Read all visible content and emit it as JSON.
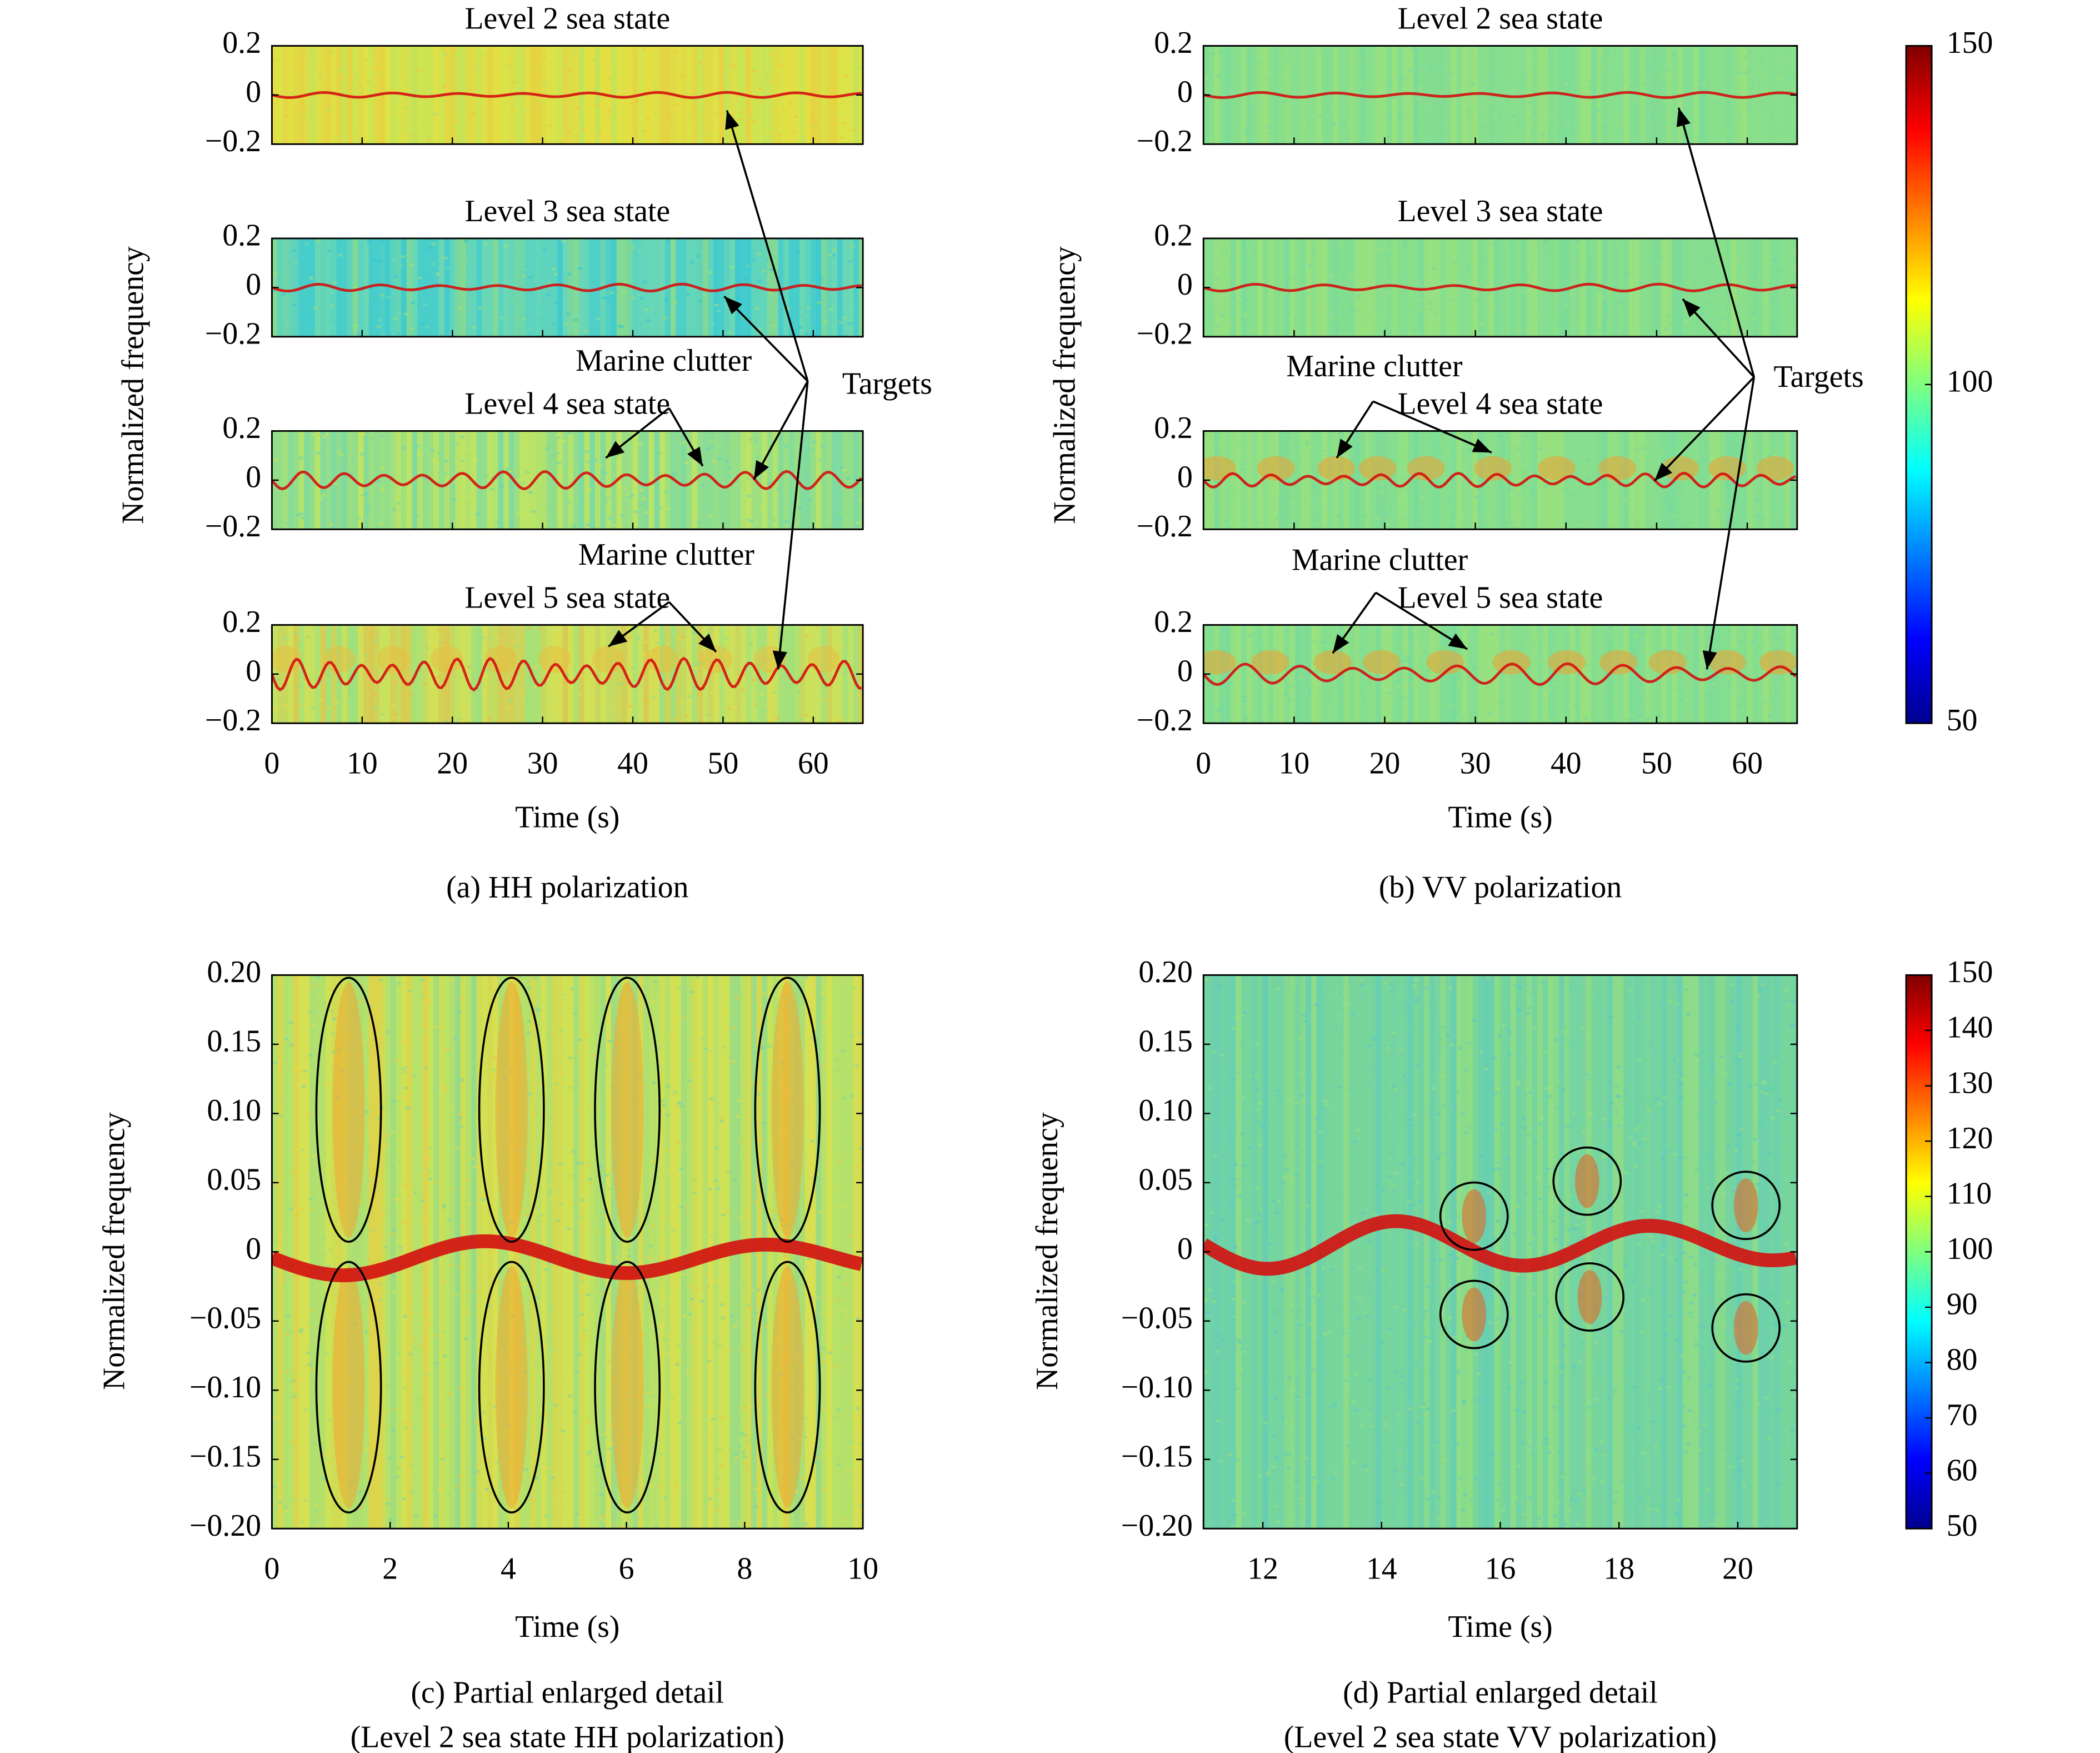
{
  "chart_data": [
    {
      "type": "heatmap-stack",
      "caption": "(a) HH polarization",
      "ylabel": "Normalized frequency",
      "xlabel": "Time (s)",
      "xlim": [
        0,
        65.5
      ],
      "xticks": [
        0,
        10,
        20,
        30,
        40,
        50,
        60
      ],
      "panels": [
        {
          "title": "Level 2 sea state",
          "ylim": [
            -0.2,
            0.2
          ],
          "yticks": [
            0.2,
            0,
            {
              "value": -0.2,
              "label": "−0.2"
            }
          ]
        },
        {
          "title": "Level 3 sea state",
          "ylim": [
            -0.2,
            0.2
          ],
          "yticks": [
            0.2,
            0,
            {
              "value": -0.2,
              "label": "−0.2"
            }
          ]
        },
        {
          "title": "Level 4 sea state",
          "ylim": [
            -0.2,
            0.2
          ],
          "yticks": [
            0.2,
            0,
            {
              "value": -0.2,
              "label": "−0.2"
            }
          ]
        },
        {
          "title": "Level 5 sea state",
          "ylim": [
            -0.2,
            0.2
          ],
          "yticks": [
            0.2,
            0,
            {
              "value": -0.2,
              "label": "−0.2"
            }
          ]
        }
      ],
      "annotations": [
        "Marine clutter",
        "Marine clutter",
        "Targets"
      ]
    },
    {
      "type": "heatmap-stack",
      "caption": "(b) VV polarization",
      "ylabel": "Normalized frequency",
      "xlabel": "Time (s)",
      "xlim": [
        0,
        65.5
      ],
      "xticks": [
        0,
        10,
        20,
        30,
        40,
        50,
        60
      ],
      "panels": [
        {
          "title": "Level 2 sea state",
          "ylim": [
            -0.2,
            0.2
          ],
          "yticks": [
            0.2,
            0,
            {
              "value": -0.2,
              "label": "−0.2"
            }
          ]
        },
        {
          "title": "Level 3 sea state",
          "ylim": [
            -0.2,
            0.2
          ],
          "yticks": [
            0.2,
            0,
            {
              "value": -0.2,
              "label": "−0.2"
            }
          ]
        },
        {
          "title": "Level 4 sea state",
          "ylim": [
            -0.2,
            0.2
          ],
          "yticks": [
            0.2,
            0,
            {
              "value": -0.2,
              "label": "−0.2"
            }
          ]
        },
        {
          "title": "Level 5 sea state",
          "ylim": [
            -0.2,
            0.2
          ],
          "yticks": [
            0.2,
            0,
            {
              "value": -0.2,
              "label": "−0.2"
            }
          ]
        }
      ],
      "annotations": [
        "Marine clutter",
        "Marine clutter",
        "Targets"
      ]
    },
    {
      "type": "heatmap",
      "caption": [
        "(c) Partial enlarged detail",
        "(Level 2 sea state HH polarization)"
      ],
      "ylabel": "Normalized frequency",
      "xlabel": "Time (s)",
      "xlim": [
        0,
        10
      ],
      "xticks": [
        0,
        2,
        4,
        6,
        8,
        10
      ],
      "ylim": [
        -0.2,
        0.2
      ],
      "yticks": [
        {
          "value": 0.2,
          "label": "0.20"
        },
        0.15,
        {
          "value": 0.1,
          "label": "0.10"
        },
        0.05,
        0,
        {
          "value": -0.05,
          "label": "−0.05"
        },
        {
          "value": -0.1,
          "label": "−0.10"
        },
        {
          "value": -0.15,
          "label": "−0.15"
        },
        {
          "value": -0.2,
          "label": "−0.20"
        }
      ]
    },
    {
      "type": "heatmap",
      "caption": [
        "(d) Partial enlarged detail",
        "(Level 2 sea state VV polarization)"
      ],
      "ylabel": "Normalized frequency",
      "xlabel": "Time (s)",
      "xlim": [
        11,
        21
      ],
      "xticks": [
        12,
        14,
        16,
        18,
        20
      ],
      "ylim": [
        -0.2,
        0.2
      ],
      "yticks": [
        {
          "value": 0.2,
          "label": "0.20"
        },
        0.15,
        {
          "value": 0.1,
          "label": "0.10"
        },
        0.05,
        0,
        {
          "value": -0.05,
          "label": "−0.05"
        },
        {
          "value": -0.1,
          "label": "−0.10"
        },
        {
          "value": -0.15,
          "label": "−0.15"
        },
        {
          "value": -0.2,
          "label": "−0.20"
        }
      ]
    }
  ],
  "colorbars": [
    {
      "clim": [
        50,
        150
      ],
      "ticks": [
        50,
        100,
        150
      ]
    },
    {
      "clim": [
        50,
        150
      ],
      "ticks": [
        50,
        60,
        70,
        80,
        90,
        100,
        110,
        120,
        130,
        140,
        150
      ]
    }
  ]
}
